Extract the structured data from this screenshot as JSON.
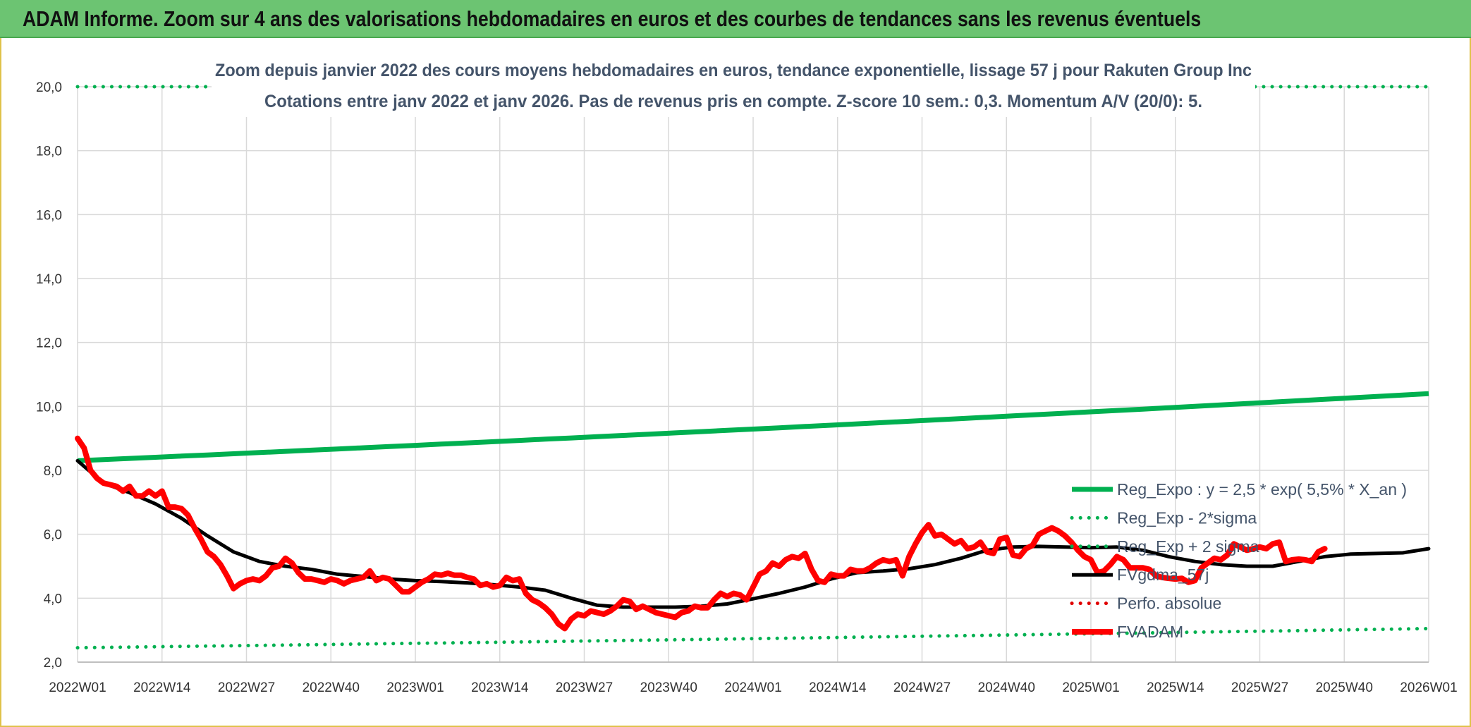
{
  "header": {
    "title": "ADAM Informe. Zoom sur 4 ans des valorisations hebdomadaires en euros et des courbes de tendances sans les revenus éventuels"
  },
  "chart_data": {
    "type": "line",
    "subtitle_line1": "Zoom depuis janvier 2022 des cours moyens hebdomadaires en euros, tendance exponentielle, lissage 57 j pour Rakuten Group Inc",
    "subtitle_line2": "Cotations entre janv 2022 et janv 2026. Pas de revenus pris en compte. Z-score 10 sem.: 0,3. Momentum A/V (20/0): 5.",
    "ylim": [
      2,
      20
    ],
    "yticks": [
      2,
      4,
      6,
      8,
      10,
      12,
      14,
      16,
      18,
      20
    ],
    "ytick_labels": [
      "2,0",
      "4,0",
      "6,0",
      "8,0",
      "10,0",
      "12,0",
      "14,0",
      "16,0",
      "18,0",
      "20,0"
    ],
    "x_count": 209,
    "xtick_positions": [
      0,
      13,
      26,
      39,
      52,
      65,
      78,
      91,
      104,
      117,
      130,
      143,
      156,
      169,
      182,
      195,
      208
    ],
    "xtick_labels": [
      "2022W01",
      "2022W14",
      "2022W27",
      "2022W40",
      "2023W01",
      "2023W14",
      "2023W27",
      "2023W40",
      "2024W01",
      "2024W14",
      "2024W27",
      "2024W40",
      "2025W01",
      "2025W14",
      "2025W27",
      "2025W40",
      "2026W01"
    ],
    "grid": true,
    "legend_position": "bottom-right",
    "colors": {
      "reg_expo": "#00b050",
      "perfo": "#e00000",
      "fvgdma": "#000000",
      "fvadam": "#ff0000",
      "grid": "#d9d9d9"
    },
    "series": [
      {
        "name": "Reg_Expo : y = 2,5 * exp( 5,5% *  X_an )",
        "style": "solid-green",
        "start": 8.3,
        "end": 10.4
      },
      {
        "name": "Reg_Exp - 2*sigma",
        "style": "dotted-green",
        "start": 2.45,
        "end": 3.05
      },
      {
        "name": "Reg_Exp + 2 sigma",
        "style": "dotted-green",
        "start": 20.0,
        "end": 20.0
      },
      {
        "name": "FVgdma_57j",
        "style": "solid-black",
        "points": [
          [
            0,
            8.3
          ],
          [
            4,
            7.6
          ],
          [
            8,
            7.3
          ],
          [
            12,
            6.95
          ],
          [
            16,
            6.5
          ],
          [
            20,
            5.95
          ],
          [
            24,
            5.45
          ],
          [
            28,
            5.15
          ],
          [
            32,
            5.0
          ],
          [
            36,
            4.9
          ],
          [
            40,
            4.75
          ],
          [
            44,
            4.68
          ],
          [
            48,
            4.6
          ],
          [
            52,
            4.55
          ],
          [
            56,
            4.52
          ],
          [
            60,
            4.48
          ],
          [
            64,
            4.42
          ],
          [
            68,
            4.35
          ],
          [
            72,
            4.25
          ],
          [
            76,
            4.0
          ],
          [
            80,
            3.78
          ],
          [
            84,
            3.72
          ],
          [
            88,
            3.72
          ],
          [
            92,
            3.72
          ],
          [
            96,
            3.75
          ],
          [
            100,
            3.82
          ],
          [
            104,
            3.98
          ],
          [
            108,
            4.15
          ],
          [
            112,
            4.35
          ],
          [
            116,
            4.6
          ],
          [
            120,
            4.8
          ],
          [
            124,
            4.85
          ],
          [
            128,
            4.92
          ],
          [
            132,
            5.05
          ],
          [
            136,
            5.25
          ],
          [
            140,
            5.5
          ],
          [
            144,
            5.6
          ],
          [
            148,
            5.62
          ],
          [
            152,
            5.6
          ],
          [
            156,
            5.58
          ],
          [
            160,
            5.6
          ],
          [
            164,
            5.5
          ],
          [
            168,
            5.3
          ],
          [
            172,
            5.15
          ],
          [
            176,
            5.05
          ],
          [
            180,
            5.0
          ],
          [
            184,
            5.0
          ],
          [
            188,
            5.15
          ],
          [
            192,
            5.3
          ],
          [
            196,
            5.38
          ],
          [
            200,
            5.4
          ],
          [
            204,
            5.42
          ],
          [
            208,
            5.55
          ]
        ]
      },
      {
        "name": "Perfo. absolue",
        "style": "dotted-red",
        "points": []
      },
      {
        "name": "FVADAM",
        "style": "solid-red",
        "points": [
          [
            0,
            9.0
          ],
          [
            1,
            8.7
          ],
          [
            2,
            8.0
          ],
          [
            3,
            7.75
          ],
          [
            4,
            7.6
          ],
          [
            5,
            7.55
          ],
          [
            6,
            7.5
          ],
          [
            7,
            7.35
          ],
          [
            8,
            7.5
          ],
          [
            9,
            7.2
          ],
          [
            10,
            7.2
          ],
          [
            11,
            7.35
          ],
          [
            12,
            7.2
          ],
          [
            13,
            7.35
          ],
          [
            14,
            6.85
          ],
          [
            15,
            6.85
          ],
          [
            16,
            6.8
          ],
          [
            17,
            6.6
          ],
          [
            18,
            6.2
          ],
          [
            19,
            5.85
          ],
          [
            20,
            5.45
          ],
          [
            21,
            5.3
          ],
          [
            22,
            5.05
          ],
          [
            23,
            4.7
          ],
          [
            24,
            4.3
          ],
          [
            25,
            4.45
          ],
          [
            26,
            4.55
          ],
          [
            27,
            4.6
          ],
          [
            28,
            4.55
          ],
          [
            29,
            4.7
          ],
          [
            30,
            4.95
          ],
          [
            31,
            5.0
          ],
          [
            32,
            5.25
          ],
          [
            33,
            5.1
          ],
          [
            34,
            4.8
          ],
          [
            35,
            4.6
          ],
          [
            36,
            4.6
          ],
          [
            37,
            4.55
          ],
          [
            38,
            4.5
          ],
          [
            39,
            4.6
          ],
          [
            40,
            4.55
          ],
          [
            41,
            4.45
          ],
          [
            42,
            4.55
          ],
          [
            43,
            4.6
          ],
          [
            44,
            4.65
          ],
          [
            45,
            4.85
          ],
          [
            46,
            4.55
          ],
          [
            47,
            4.65
          ],
          [
            48,
            4.6
          ],
          [
            49,
            4.4
          ],
          [
            50,
            4.2
          ],
          [
            51,
            4.2
          ],
          [
            52,
            4.35
          ],
          [
            53,
            4.5
          ],
          [
            54,
            4.6
          ],
          [
            55,
            4.75
          ],
          [
            56,
            4.72
          ],
          [
            57,
            4.78
          ],
          [
            58,
            4.72
          ],
          [
            59,
            4.72
          ],
          [
            60,
            4.65
          ],
          [
            61,
            4.6
          ],
          [
            62,
            4.4
          ],
          [
            63,
            4.45
          ],
          [
            64,
            4.35
          ],
          [
            65,
            4.4
          ],
          [
            66,
            4.65
          ],
          [
            67,
            4.55
          ],
          [
            68,
            4.6
          ],
          [
            69,
            4.15
          ],
          [
            70,
            3.95
          ],
          [
            71,
            3.85
          ],
          [
            72,
            3.7
          ],
          [
            73,
            3.5
          ],
          [
            74,
            3.2
          ],
          [
            75,
            3.05
          ],
          [
            76,
            3.35
          ],
          [
            77,
            3.5
          ],
          [
            78,
            3.45
          ],
          [
            79,
            3.6
          ],
          [
            80,
            3.55
          ],
          [
            81,
            3.5
          ],
          [
            82,
            3.6
          ],
          [
            83,
            3.75
          ],
          [
            84,
            3.95
          ],
          [
            85,
            3.9
          ],
          [
            86,
            3.65
          ],
          [
            87,
            3.75
          ],
          [
            88,
            3.65
          ],
          [
            89,
            3.55
          ],
          [
            90,
            3.5
          ],
          [
            91,
            3.45
          ],
          [
            92,
            3.4
          ],
          [
            93,
            3.55
          ],
          [
            94,
            3.6
          ],
          [
            95,
            3.75
          ],
          [
            96,
            3.7
          ],
          [
            97,
            3.7
          ],
          [
            98,
            3.95
          ],
          [
            99,
            4.15
          ],
          [
            100,
            4.05
          ],
          [
            101,
            4.15
          ],
          [
            102,
            4.1
          ],
          [
            103,
            3.95
          ],
          [
            104,
            4.35
          ],
          [
            105,
            4.75
          ],
          [
            106,
            4.85
          ],
          [
            107,
            5.1
          ],
          [
            108,
            5.0
          ],
          [
            109,
            5.2
          ],
          [
            110,
            5.3
          ],
          [
            111,
            5.25
          ],
          [
            112,
            5.4
          ],
          [
            113,
            4.9
          ],
          [
            114,
            4.55
          ],
          [
            115,
            4.5
          ],
          [
            116,
            4.75
          ],
          [
            117,
            4.7
          ],
          [
            118,
            4.7
          ],
          [
            119,
            4.9
          ],
          [
            120,
            4.85
          ],
          [
            121,
            4.85
          ],
          [
            122,
            4.95
          ],
          [
            123,
            5.1
          ],
          [
            124,
            5.2
          ],
          [
            125,
            5.15
          ],
          [
            126,
            5.2
          ],
          [
            127,
            4.7
          ],
          [
            128,
            5.3
          ],
          [
            129,
            5.7
          ],
          [
            130,
            6.05
          ],
          [
            131,
            6.3
          ],
          [
            132,
            5.95
          ],
          [
            133,
            6.0
          ],
          [
            134,
            5.85
          ],
          [
            135,
            5.7
          ],
          [
            136,
            5.8
          ],
          [
            137,
            5.55
          ],
          [
            138,
            5.6
          ],
          [
            139,
            5.75
          ],
          [
            140,
            5.45
          ],
          [
            141,
            5.4
          ],
          [
            142,
            5.85
          ],
          [
            143,
            5.9
          ],
          [
            144,
            5.35
          ],
          [
            145,
            5.3
          ],
          [
            146,
            5.55
          ],
          [
            147,
            5.65
          ],
          [
            148,
            6.0
          ],
          [
            149,
            6.1
          ],
          [
            150,
            6.2
          ],
          [
            151,
            6.1
          ],
          [
            152,
            5.95
          ],
          [
            153,
            5.75
          ],
          [
            154,
            5.5
          ],
          [
            155,
            5.3
          ],
          [
            156,
            5.2
          ],
          [
            157,
            4.8
          ],
          [
            158,
            4.85
          ],
          [
            159,
            5.05
          ],
          [
            160,
            5.3
          ],
          [
            161,
            5.2
          ],
          [
            162,
            4.95
          ],
          [
            163,
            4.95
          ],
          [
            164,
            4.95
          ],
          [
            165,
            4.9
          ],
          [
            166,
            4.7
          ],
          [
            167,
            4.65
          ],
          [
            168,
            4.62
          ],
          [
            169,
            4.6
          ],
          [
            170,
            4.62
          ],
          [
            171,
            4.5
          ],
          [
            172,
            4.55
          ],
          [
            173,
            4.95
          ],
          [
            174,
            5.1
          ],
          [
            175,
            5.25
          ],
          [
            176,
            5.2
          ],
          [
            177,
            5.35
          ],
          [
            178,
            5.7
          ],
          [
            179,
            5.6
          ],
          [
            180,
            5.5
          ],
          [
            181,
            5.55
          ],
          [
            182,
            5.6
          ],
          [
            183,
            5.55
          ],
          [
            184,
            5.7
          ],
          [
            185,
            5.75
          ],
          [
            186,
            5.15
          ],
          [
            187,
            5.2
          ],
          [
            188,
            5.22
          ],
          [
            189,
            5.2
          ],
          [
            190,
            5.15
          ],
          [
            191,
            5.45
          ],
          [
            192,
            5.55
          ]
        ]
      }
    ]
  }
}
